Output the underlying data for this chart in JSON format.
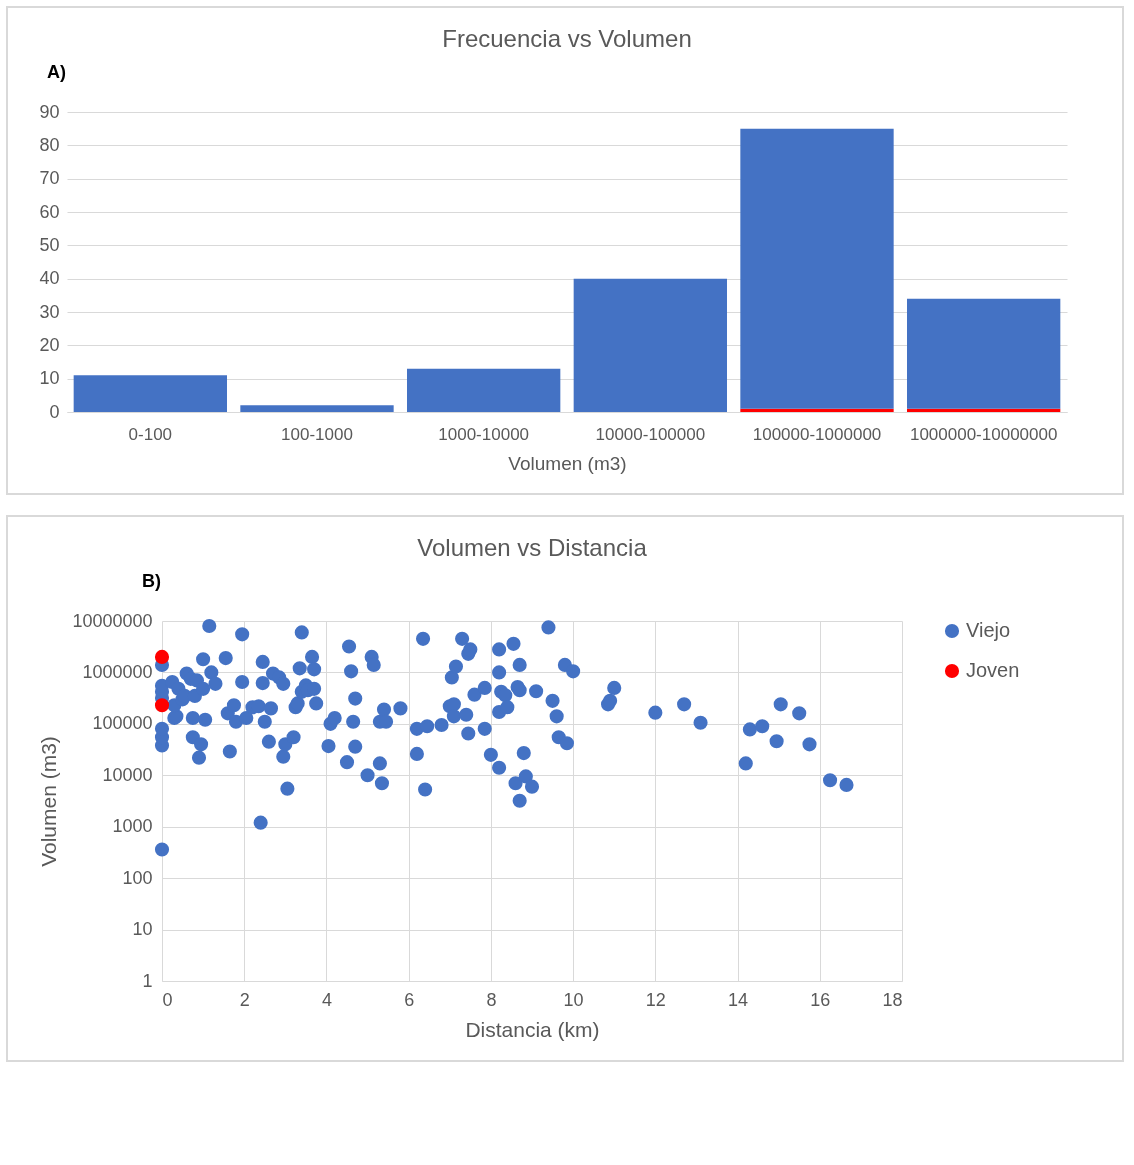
{
  "chart_data": [
    {
      "type": "bar",
      "title": "Frecuencia vs Volumen",
      "xlabel": "Volumen (m3)",
      "annotations": [
        "A)"
      ],
      "categories": [
        "0-100",
        "100-1000",
        "1000-10000",
        "10000-100000",
        "100000-1000000",
        "1000000-10000000"
      ],
      "stacked": true,
      "series": [
        {
          "color": "#ff0000",
          "values": [
            0,
            0,
            0,
            0,
            1,
            1
          ]
        },
        {
          "color": "#4472c4",
          "values": [
            11,
            2,
            13,
            40,
            84,
            33
          ]
        }
      ],
      "ylim": [
        0,
        90
      ],
      "yticks": [
        0,
        10,
        20,
        30,
        40,
        50,
        60,
        70,
        80,
        90
      ],
      "grid": "y",
      "legend": false
    },
    {
      "type": "scatter",
      "title": "Volumen vs Distancia",
      "xlabel": "Distancia (km)",
      "ylabel": "Volumen (m3)",
      "annotations": [
        "B)"
      ],
      "series": [
        {
          "name": "Viejo",
          "color": "#4472c4",
          "x": [
            0,
            0,
            0,
            0,
            0,
            0,
            0,
            0,
            0.25,
            0.3,
            0.35,
            0.3,
            0.4,
            0.5,
            0.55,
            0.6,
            0.7,
            0.75,
            0.75,
            0.8,
            0.85,
            0.9,
            0.95,
            1.0,
            1.0,
            1.05,
            1.15,
            1.2,
            1.3,
            1.55,
            1.6,
            1.65,
            1.75,
            1.8,
            1.95,
            1.95,
            2.05,
            2.2,
            2.35,
            2.4,
            2.45,
            2.45,
            2.5,
            2.6,
            2.65,
            2.7,
            2.85,
            2.95,
            2.95,
            3.0,
            3.05,
            3.2,
            3.25,
            3.3,
            3.35,
            3.4,
            3.4,
            3.5,
            3.55,
            3.65,
            3.7,
            3.7,
            3.75,
            4.05,
            4.1,
            4.2,
            4.5,
            4.55,
            4.6,
            4.65,
            4.7,
            4.7,
            5.0,
            5.1,
            5.15,
            5.3,
            5.3,
            5.35,
            5.4,
            5.45,
            5.8,
            6.2,
            6.2,
            6.35,
            6.4,
            6.45,
            6.8,
            7.0,
            7.1,
            7.05,
            7.15,
            7.1,
            7.3,
            7.4,
            7.45,
            7.45,
            7.5,
            7.6,
            7.85,
            7.85,
            8.0,
            8.2,
            8.2,
            8.2,
            8.2,
            8.25,
            8.35,
            8.4,
            8.55,
            8.6,
            8.65,
            8.7,
            8.7,
            8.7,
            8.8,
            8.85,
            9.0,
            9.1,
            9.4,
            9.5,
            9.6,
            9.65,
            9.8,
            9.85,
            10.0,
            10.85,
            10.9,
            11.0,
            12.0,
            12.7,
            13.1,
            14.2,
            14.3,
            14.6,
            14.95,
            15.05,
            15.5,
            15.75,
            16.25,
            16.65
          ],
          "values": [
            360,
            38000,
            55000,
            80000,
            320000,
            420000,
            550000,
            1400000,
            650000,
            130000,
            140000,
            230000,
            480000,
            300000,
            350000,
            950000,
            750000,
            55000,
            130000,
            350000,
            700000,
            22000,
            40000,
            1800000,
            480000,
            120000,
            8000000,
            1000000,
            600000,
            1900000,
            160000,
            29000,
            230000,
            110000,
            5500000,
            650000,
            130000,
            210000,
            220000,
            1200,
            1600000,
            620000,
            110000,
            45000,
            200000,
            950000,
            800000,
            600000,
            23000,
            40000,
            5500,
            55000,
            210000,
            250000,
            1200000,
            420000,
            6000000,
            560000,
            450000,
            2000000,
            1150000,
            480000,
            250000,
            37000,
            100000,
            130000,
            18000,
            3200000,
            1050000,
            110000,
            310000,
            36000,
            10000,
            2000000,
            1400000,
            110000,
            17000,
            7000,
            190000,
            110000,
            200000,
            80000,
            26000,
            4500000,
            5300,
            90000,
            95000,
            220000,
            240000,
            800000,
            1300000,
            140000,
            4500000,
            150000,
            65000,
            2300000,
            2800000,
            370000,
            500000,
            80000,
            25000,
            14000,
            2800000,
            1000000,
            170000,
            420000,
            360000,
            210000,
            3600000,
            7000,
            520000,
            1400000,
            450000,
            3200,
            27000,
            9500,
            6000,
            430000,
            7500000,
            280000,
            140000,
            55000,
            1400000,
            42000,
            1050000,
            240000,
            280000,
            500000,
            165000,
            240000,
            105000,
            17000,
            78000,
            90000,
            46000,
            240000,
            160000,
            40000,
            8000,
            6500
          ]
        },
        {
          "name": "Joven",
          "color": "#ff0000",
          "x": [
            0,
            0
          ],
          "values": [
            2000000,
            230000
          ]
        }
      ],
      "xlim": [
        0,
        18
      ],
      "xticks": [
        0,
        2,
        4,
        6,
        8,
        10,
        12,
        14,
        16,
        18
      ],
      "ylim": [
        1,
        10000000
      ],
      "yticks": [
        1,
        10,
        100,
        1000,
        10000,
        100000,
        1000000,
        10000000
      ],
      "log": "y",
      "grid": true,
      "legend": "right",
      "marker": "circle"
    }
  ]
}
